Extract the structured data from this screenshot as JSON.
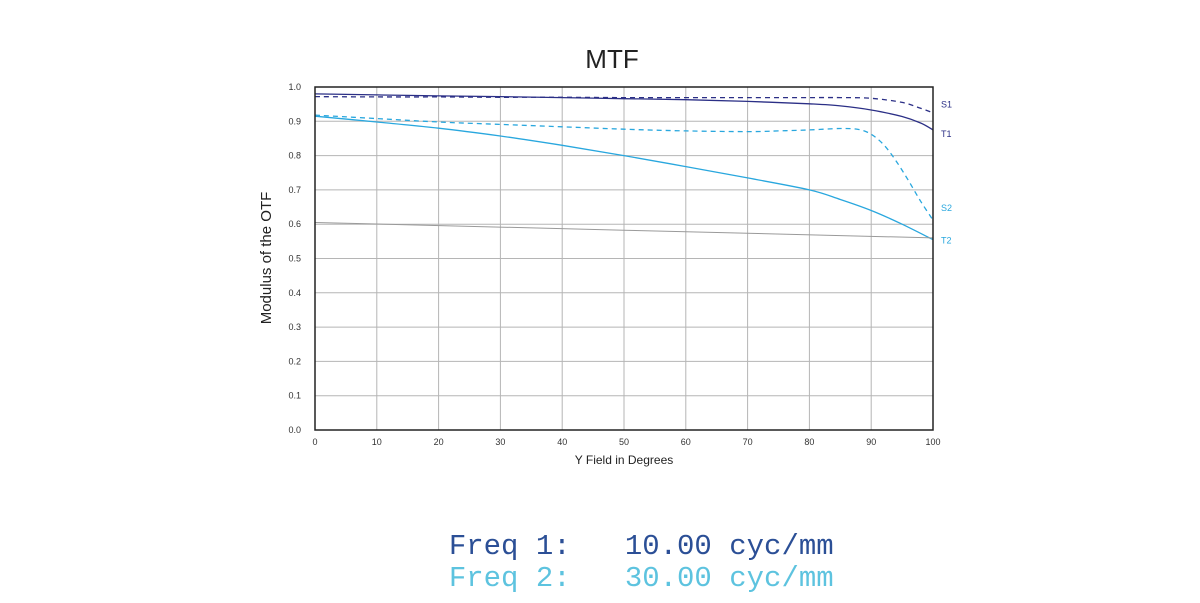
{
  "chart_data": {
    "type": "line",
    "title": "MTF",
    "xlabel": "Y Field in Degrees",
    "ylabel": "Modulus of the OTF",
    "xlim": [
      0,
      100
    ],
    "ylim": [
      0,
      1
    ],
    "x_ticks": [
      "0",
      "10",
      "20",
      "30",
      "40",
      "50",
      "60",
      "70",
      "80",
      "90",
      "100"
    ],
    "y_ticks": [
      "0.0",
      "0.1",
      "0.2",
      "0.3",
      "0.4",
      "0.5",
      "0.6",
      "0.7",
      "0.8",
      "0.9",
      "1.0"
    ],
    "grid": true,
    "series": [
      {
        "name": "S1",
        "color": "#2b2f86",
        "dash": true,
        "x": [
          0,
          10,
          20,
          30,
          40,
          50,
          60,
          70,
          80,
          85,
          90,
          95,
          98,
          100
        ],
        "y": [
          0.972,
          0.971,
          0.971,
          0.97,
          0.97,
          0.969,
          0.969,
          0.969,
          0.969,
          0.969,
          0.967,
          0.955,
          0.938,
          0.925
        ]
      },
      {
        "name": "T1",
        "color": "#2b2f86",
        "dash": false,
        "x": [
          0,
          10,
          20,
          30,
          40,
          50,
          60,
          70,
          80,
          85,
          90,
          95,
          98,
          100
        ],
        "y": [
          0.98,
          0.977,
          0.974,
          0.972,
          0.969,
          0.966,
          0.963,
          0.958,
          0.951,
          0.945,
          0.933,
          0.914,
          0.895,
          0.875
        ]
      },
      {
        "name": "S2",
        "color": "#29a7de",
        "dash": true,
        "x": [
          0,
          10,
          20,
          30,
          40,
          50,
          60,
          70,
          75,
          80,
          85,
          88,
          90,
          92,
          94,
          96,
          98,
          100
        ],
        "y": [
          0.918,
          0.908,
          0.898,
          0.891,
          0.884,
          0.877,
          0.872,
          0.87,
          0.872,
          0.875,
          0.879,
          0.876,
          0.862,
          0.832,
          0.785,
          0.728,
          0.667,
          0.612
        ]
      },
      {
        "name": "T2",
        "color": "#29a7de",
        "dash": false,
        "x": [
          0,
          10,
          20,
          30,
          40,
          50,
          60,
          70,
          80,
          85,
          90,
          95,
          100
        ],
        "y": [
          0.915,
          0.898,
          0.88,
          0.857,
          0.83,
          0.8,
          0.768,
          0.735,
          0.7,
          0.672,
          0.64,
          0.6,
          0.555
        ]
      },
      {
        "color": "#9a9a9a",
        "dash": false,
        "x": [
          0,
          100
        ],
        "y": [
          0.605,
          0.56
        ]
      }
    ]
  },
  "legend": {
    "freq1": {
      "label": "Freq 1:",
      "value": "10.00 cyc/mm",
      "color": "#2b4f96"
    },
    "freq2": {
      "label": "Freq 2:",
      "value": "30.00 cyc/mm",
      "color": "#5dc3df"
    }
  }
}
